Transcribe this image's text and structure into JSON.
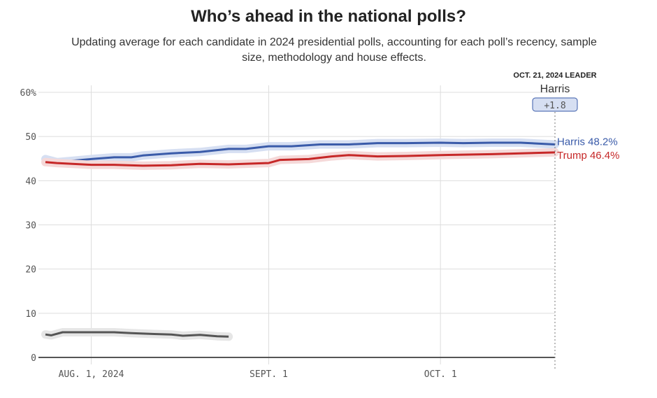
{
  "chart_data": {
    "type": "line",
    "title": "Who’s ahead in the national polls?",
    "subtitle": "Updating average for each candidate in 2024 presidential polls, accounting for each poll’s recency, sample size, methodology and house effects.",
    "ylim": [
      0,
      60
    ],
    "yticks": [
      0,
      10,
      20,
      30,
      40,
      50,
      60
    ],
    "ytick_labels": [
      "0",
      "10",
      "20",
      "30",
      "40",
      "50",
      "60%"
    ],
    "xlim": [
      "2024-07-24",
      "2024-10-21"
    ],
    "xticks": [
      {
        "date": "2024-08-01",
        "label": "AUG. 1, 2024"
      },
      {
        "date": "2024-09-01",
        "label": "SEPT. 1"
      },
      {
        "date": "2024-10-01",
        "label": "OCT. 1"
      }
    ],
    "grid": true,
    "leader": {
      "heading": "OCT. 21, 2024 LEADER",
      "name": "Harris",
      "margin": "+1.8",
      "date": "2024-10-21"
    },
    "series": [
      {
        "name": "Harris",
        "end_label": "Harris 48.2%",
        "color": "#3a5ba9",
        "band": "#d6dff2",
        "points": [
          [
            "2024-07-24",
            44.9
          ],
          [
            "2024-07-26",
            44.2
          ],
          [
            "2024-08-01",
            44.9
          ],
          [
            "2024-08-05",
            45.3
          ],
          [
            "2024-08-08",
            45.3
          ],
          [
            "2024-08-10",
            45.7
          ],
          [
            "2024-08-15",
            46.2
          ],
          [
            "2024-08-20",
            46.5
          ],
          [
            "2024-08-25",
            47.2
          ],
          [
            "2024-08-28",
            47.2
          ],
          [
            "2024-09-01",
            47.8
          ],
          [
            "2024-09-05",
            47.8
          ],
          [
            "2024-09-10",
            48.2
          ],
          [
            "2024-09-15",
            48.2
          ],
          [
            "2024-09-20",
            48.5
          ],
          [
            "2024-09-25",
            48.5
          ],
          [
            "2024-10-01",
            48.6
          ],
          [
            "2024-10-05",
            48.5
          ],
          [
            "2024-10-10",
            48.6
          ],
          [
            "2024-10-15",
            48.6
          ],
          [
            "2024-10-21",
            48.2
          ]
        ]
      },
      {
        "name": "Trump",
        "end_label": "Trump 46.4%",
        "color": "#c62828",
        "band": "#f5d9d9",
        "points": [
          [
            "2024-07-24",
            44.2
          ],
          [
            "2024-07-26",
            44.0
          ],
          [
            "2024-08-01",
            43.6
          ],
          [
            "2024-08-05",
            43.6
          ],
          [
            "2024-08-10",
            43.4
          ],
          [
            "2024-08-15",
            43.5
          ],
          [
            "2024-08-20",
            43.8
          ],
          [
            "2024-08-25",
            43.7
          ],
          [
            "2024-09-01",
            44.0
          ],
          [
            "2024-09-03",
            44.7
          ],
          [
            "2024-09-08",
            44.9
          ],
          [
            "2024-09-12",
            45.5
          ],
          [
            "2024-09-15",
            45.8
          ],
          [
            "2024-09-20",
            45.5
          ],
          [
            "2024-09-25",
            45.6
          ],
          [
            "2024-10-01",
            45.8
          ],
          [
            "2024-10-05",
            45.9
          ],
          [
            "2024-10-10",
            46.0
          ],
          [
            "2024-10-15",
            46.2
          ],
          [
            "2024-10-21",
            46.4
          ]
        ]
      },
      {
        "color": "#555555",
        "band": "#e6e6e6",
        "points": [
          [
            "2024-07-24",
            5.2
          ],
          [
            "2024-07-25",
            5.0
          ],
          [
            "2024-07-27",
            5.7
          ],
          [
            "2024-08-01",
            5.7
          ],
          [
            "2024-08-05",
            5.7
          ],
          [
            "2024-08-08",
            5.5
          ],
          [
            "2024-08-12",
            5.3
          ],
          [
            "2024-08-15",
            5.2
          ],
          [
            "2024-08-17",
            4.9
          ],
          [
            "2024-08-20",
            5.1
          ],
          [
            "2024-08-23",
            4.8
          ],
          [
            "2024-08-25",
            4.7
          ]
        ]
      }
    ]
  }
}
